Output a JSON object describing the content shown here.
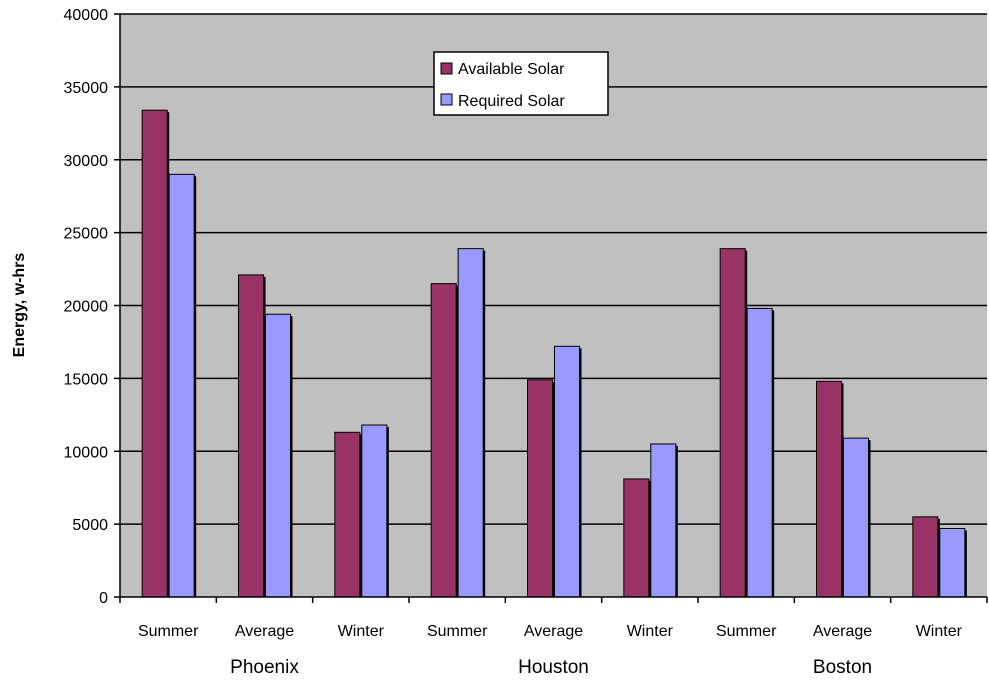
{
  "chart_data": {
    "type": "bar",
    "title": "",
    "xlabel": "",
    "ylabel": "Energy, w-hrs",
    "ylim": [
      0,
      40000
    ],
    "yticks": [
      0,
      5000,
      10000,
      15000,
      20000,
      25000,
      30000,
      35000,
      40000
    ],
    "grid": true,
    "legend_position": "top-center",
    "categories": [
      "Summer",
      "Average",
      "Winter",
      "Summer",
      "Average",
      "Winter",
      "Summer",
      "Average",
      "Winter"
    ],
    "groups": [
      {
        "label": "Phoenix",
        "span": [
          0,
          2
        ]
      },
      {
        "label": "Houston",
        "span": [
          3,
          5
        ]
      },
      {
        "label": "Boston",
        "span": [
          6,
          8
        ]
      }
    ],
    "series": [
      {
        "name": "Available Solar",
        "color": "#993366",
        "values": [
          33400,
          22100,
          11300,
          21500,
          14900,
          8100,
          23900,
          14800,
          5500
        ]
      },
      {
        "name": "Required Solar",
        "color": "#9999ff",
        "values": [
          29000,
          19400,
          11800,
          23900,
          17200,
          10500,
          19800,
          10900,
          4700
        ]
      }
    ],
    "colors": {
      "plot_background": "#c0c0c0",
      "gridline": "#000000"
    }
  }
}
